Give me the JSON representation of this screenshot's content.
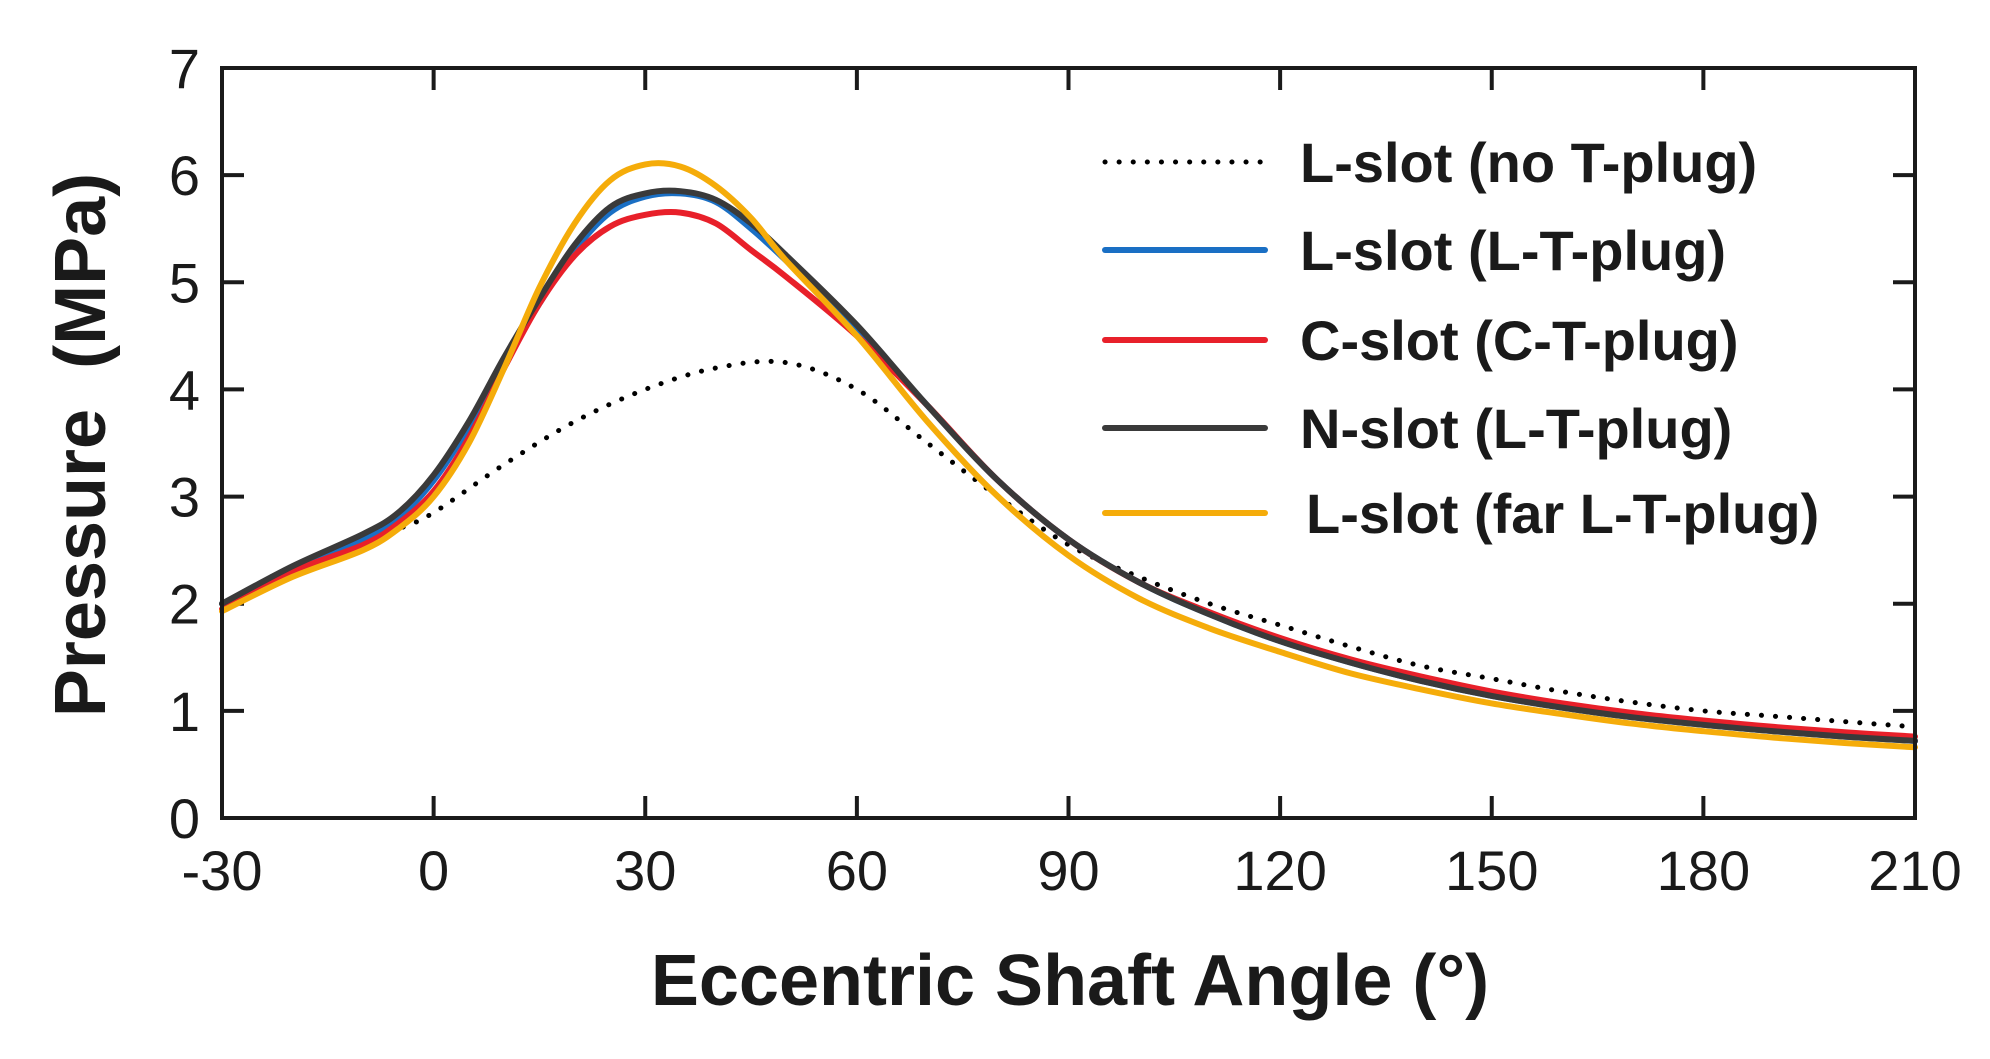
{
  "chart_data": {
    "type": "line",
    "title": "",
    "xlabel": "Eccentric Shaft Angle (°)",
    "ylabel": "Pressure  (MPa)",
    "xlim": [
      -30,
      210
    ],
    "ylim": [
      0,
      7
    ],
    "xticks": [
      -30,
      0,
      30,
      60,
      90,
      120,
      150,
      180,
      210
    ],
    "yticks": [
      0,
      1,
      2,
      3,
      4,
      5,
      6,
      7
    ],
    "grid": false,
    "legend_position": "top-right",
    "series": [
      {
        "name": "L-slot (no T-plug)",
        "color": "#000000",
        "style": "dotted",
        "x": [
          -30,
          -20,
          -10,
          -5,
          0,
          10,
          20,
          30,
          40,
          50,
          60,
          70,
          80,
          90,
          100,
          110,
          120,
          130,
          140,
          150,
          160,
          170,
          180,
          190,
          200,
          210
        ],
        "y": [
          2.0,
          2.35,
          2.6,
          2.7,
          2.85,
          3.3,
          3.7,
          4.0,
          4.2,
          4.25,
          4.0,
          3.5,
          3.0,
          2.55,
          2.25,
          2.0,
          1.8,
          1.6,
          1.42,
          1.3,
          1.18,
          1.08,
          1.0,
          0.95,
          0.9,
          0.85
        ]
      },
      {
        "name": "L-slot (L-T-plug)",
        "color": "#1a6fc4",
        "style": "solid",
        "x": [
          -30,
          -20,
          -10,
          -5,
          0,
          5,
          10,
          15,
          20,
          25,
          30,
          35,
          40,
          45,
          50,
          60,
          70,
          80,
          90,
          100,
          110,
          120,
          130,
          140,
          150,
          160,
          170,
          180,
          190,
          200,
          210
        ],
        "y": [
          2.0,
          2.3,
          2.6,
          2.8,
          3.15,
          3.65,
          4.25,
          4.8,
          5.3,
          5.65,
          5.8,
          5.83,
          5.75,
          5.5,
          5.2,
          4.55,
          3.85,
          3.15,
          2.6,
          2.2,
          1.9,
          1.65,
          1.45,
          1.28,
          1.14,
          1.03,
          0.94,
          0.87,
          0.81,
          0.76,
          0.72
        ]
      },
      {
        "name": "C-slot (C-T-plug)",
        "color": "#e8202a",
        "style": "solid",
        "x": [
          -30,
          -20,
          -10,
          -5,
          0,
          5,
          10,
          15,
          20,
          25,
          30,
          35,
          40,
          45,
          50,
          60,
          70,
          80,
          90,
          100,
          110,
          120,
          130,
          140,
          150,
          160,
          170,
          180,
          190,
          200,
          210
        ],
        "y": [
          1.95,
          2.3,
          2.55,
          2.75,
          3.05,
          3.55,
          4.2,
          4.8,
          5.25,
          5.52,
          5.63,
          5.65,
          5.55,
          5.3,
          5.05,
          4.5,
          3.85,
          3.15,
          2.6,
          2.2,
          1.92,
          1.68,
          1.48,
          1.32,
          1.18,
          1.07,
          0.98,
          0.91,
          0.85,
          0.8,
          0.76
        ]
      },
      {
        "name": "N-slot (L-T-plug)",
        "color": "#3a3a3a",
        "style": "solid",
        "x": [
          -30,
          -20,
          -10,
          -5,
          0,
          5,
          10,
          15,
          20,
          25,
          30,
          35,
          40,
          45,
          50,
          60,
          70,
          80,
          90,
          100,
          110,
          120,
          130,
          140,
          150,
          160,
          170,
          180,
          190,
          200,
          210
        ],
        "y": [
          2.0,
          2.35,
          2.65,
          2.85,
          3.2,
          3.7,
          4.3,
          4.85,
          5.35,
          5.7,
          5.83,
          5.85,
          5.77,
          5.55,
          5.25,
          4.6,
          3.85,
          3.15,
          2.6,
          2.2,
          1.9,
          1.65,
          1.45,
          1.28,
          1.14,
          1.03,
          0.94,
          0.87,
          0.81,
          0.76,
          0.72
        ]
      },
      {
        "name": "L-slot (far L-T-plug)",
        "color": "#f5ac0a",
        "style": "solid",
        "x": [
          -30,
          -20,
          -10,
          -5,
          0,
          5,
          10,
          15,
          20,
          25,
          30,
          35,
          40,
          45,
          50,
          60,
          70,
          80,
          90,
          100,
          110,
          120,
          130,
          140,
          150,
          160,
          170,
          180,
          190,
          200,
          210
        ],
        "y": [
          1.93,
          2.25,
          2.5,
          2.7,
          3.0,
          3.5,
          4.2,
          4.95,
          5.55,
          5.95,
          6.1,
          6.08,
          5.9,
          5.6,
          5.2,
          4.5,
          3.7,
          3.0,
          2.45,
          2.05,
          1.77,
          1.55,
          1.35,
          1.2,
          1.07,
          0.97,
          0.88,
          0.81,
          0.75,
          0.7,
          0.66
        ]
      }
    ]
  }
}
